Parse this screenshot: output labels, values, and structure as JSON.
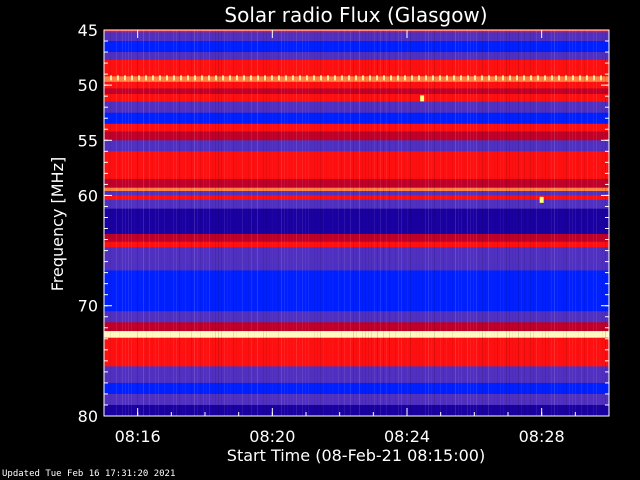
{
  "chart_data": {
    "type": "heatmap",
    "title": "Solar radio Flux (Glasgow)",
    "xlabel": "Start Time (08-Feb-21 08:15:00)",
    "ylabel": "Frequency [MHz]",
    "x_range_minutes_after_start": [
      0,
      15
    ],
    "ylim": [
      45,
      80
    ],
    "y_inverted": true,
    "x_ticks": [
      {
        "minute": 1,
        "label": "08:16"
      },
      {
        "minute": 5,
        "label": "08:20"
      },
      {
        "minute": 9,
        "label": "08:24"
      },
      {
        "minute": 13,
        "label": "08:28"
      }
    ],
    "y_ticks": [
      45,
      50,
      55,
      60,
      70,
      80
    ],
    "colormap": [
      "#1a00a0",
      "#0020ff",
      "#5030c0",
      "#c00028",
      "#ff1010",
      "#ff8040",
      "#fff8c0"
    ],
    "frequency_bands": [
      {
        "f0": 45.0,
        "f1": 45.2,
        "level": 4
      },
      {
        "f0": 45.2,
        "f1": 46.0,
        "level": 2
      },
      {
        "f0": 46.0,
        "f1": 47.0,
        "level": 1
      },
      {
        "f0": 47.0,
        "f1": 47.7,
        "level": 2
      },
      {
        "f0": 47.7,
        "f1": 49.2,
        "level": 4
      },
      {
        "f0": 49.2,
        "f1": 49.7,
        "level": 5
      },
      {
        "f0": 49.7,
        "f1": 50.3,
        "level": 4
      },
      {
        "f0": 50.3,
        "f1": 50.8,
        "level": 3
      },
      {
        "f0": 50.8,
        "f1": 51.5,
        "level": 4
      },
      {
        "f0": 51.5,
        "f1": 52.5,
        "level": 2
      },
      {
        "f0": 52.5,
        "f1": 53.5,
        "level": 1
      },
      {
        "f0": 53.5,
        "f1": 54.2,
        "level": 4
      },
      {
        "f0": 54.2,
        "f1": 55.0,
        "level": 3
      },
      {
        "f0": 55.0,
        "f1": 56.0,
        "level": 2
      },
      {
        "f0": 56.0,
        "f1": 58.5,
        "level": 4
      },
      {
        "f0": 58.5,
        "f1": 59.3,
        "level": 3
      },
      {
        "f0": 59.3,
        "f1": 59.6,
        "level": 5
      },
      {
        "f0": 59.6,
        "f1": 60.0,
        "level": 2
      },
      {
        "f0": 60.0,
        "f1": 60.4,
        "level": 4
      },
      {
        "f0": 60.4,
        "f1": 61.2,
        "level": 2
      },
      {
        "f0": 61.2,
        "f1": 63.5,
        "level": 0
      },
      {
        "f0": 63.5,
        "f1": 64.2,
        "level": 3
      },
      {
        "f0": 64.2,
        "f1": 64.7,
        "level": 4
      },
      {
        "f0": 64.7,
        "f1": 65.6,
        "level": 2
      },
      {
        "f0": 65.6,
        "f1": 66.8,
        "level": 2
      },
      {
        "f0": 66.8,
        "f1": 67.8,
        "level": 1
      },
      {
        "f0": 67.8,
        "f1": 69.0,
        "level": 1
      },
      {
        "f0": 69.0,
        "f1": 70.5,
        "level": 1
      },
      {
        "f0": 70.5,
        "f1": 71.5,
        "level": 2
      },
      {
        "f0": 71.5,
        "f1": 72.3,
        "level": 3
      },
      {
        "f0": 72.3,
        "f1": 72.9,
        "level": 6
      },
      {
        "f0": 72.9,
        "f1": 75.5,
        "level": 4
      },
      {
        "f0": 75.5,
        "f1": 77.0,
        "level": 2
      },
      {
        "f0": 77.0,
        "f1": 78.0,
        "level": 1
      },
      {
        "f0": 78.0,
        "f1": 79.0,
        "level": 2
      },
      {
        "f0": 79.0,
        "f1": 80.0,
        "level": 0
      }
    ],
    "spike_line_frequency": 49.3,
    "hot_spots": [
      {
        "minute": 9.45,
        "frequency": 51.2
      },
      {
        "minute": 13.0,
        "frequency": 60.4
      }
    ]
  },
  "footer": {
    "updated": "Updated Tue Feb 16 17:31:20 2021"
  }
}
